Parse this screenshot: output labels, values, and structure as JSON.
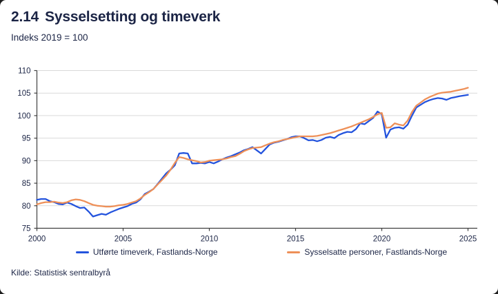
{
  "header": {
    "title_number": "2.14",
    "title_text": "Sysselsetting og timeverk",
    "subtitle": "Indeks 2019 = 100"
  },
  "source": "Kilde: Statistisk sentralbyrå",
  "colors": {
    "navy_text": "#1b2445",
    "blue_line": "#2353dd",
    "orange_line": "#ee9058",
    "gridline": "#d9d9d9",
    "axis": "#3f3f3f",
    "backdrop": "#1d1d1d",
    "card_bg": "#ffffff"
  },
  "chart_data": {
    "type": "line",
    "title": "2.14 Sysselsetting og timeverk",
    "subtitle": "Indeks 2019 = 100",
    "xlabel": "",
    "ylabel": "Indeks 2019 = 100",
    "grid": "horizontal",
    "legend_position": "bottom",
    "xlim": [
      2000,
      2025.5
    ],
    "ylim": [
      75,
      110
    ],
    "x_ticks": [
      2000,
      2005,
      2010,
      2015,
      2020,
      2025
    ],
    "y_ticks": [
      75,
      80,
      85,
      90,
      95,
      100,
      105,
      110
    ],
    "x_start": 2000.0,
    "x_step": 0.25,
    "x_unit": "year (quarterly)",
    "series": [
      {
        "name": "Utførte timeverk, Fastlands-Norge",
        "color": "#2353dd",
        "values": [
          81.3,
          81.5,
          81.5,
          81.0,
          80.8,
          80.4,
          80.3,
          80.7,
          80.4,
          79.9,
          79.5,
          79.6,
          78.7,
          77.6,
          77.9,
          78.2,
          78.0,
          78.5,
          78.9,
          79.3,
          79.6,
          79.9,
          80.4,
          80.7,
          81.4,
          82.6,
          83.1,
          83.7,
          84.8,
          86.0,
          87.2,
          88.0,
          89.0,
          91.6,
          91.7,
          91.6,
          89.4,
          89.4,
          89.5,
          89.4,
          89.7,
          89.4,
          89.8,
          90.3,
          90.7,
          91.0,
          91.4,
          91.8,
          92.3,
          92.6,
          93.0,
          92.3,
          91.6,
          92.6,
          93.6,
          94.0,
          94.2,
          94.5,
          94.8,
          95.2,
          95.4,
          95.4,
          95.0,
          94.5,
          94.6,
          94.3,
          94.6,
          95.1,
          95.3,
          95.0,
          95.7,
          96.1,
          96.4,
          96.3,
          97.0,
          98.3,
          98.1,
          98.8,
          99.5,
          100.9,
          100.3,
          95.1,
          96.9,
          97.3,
          97.4,
          97.1,
          98.0,
          100.0,
          101.8,
          102.4,
          103.0,
          103.4,
          103.7,
          103.9,
          103.8,
          103.5,
          103.9,
          104.1,
          104.3,
          104.45,
          104.6
        ]
      },
      {
        "name": "Sysselsatte personer, Fastlands-Norge",
        "color": "#ee9058",
        "values": [
          80.3,
          80.6,
          80.8,
          80.8,
          80.9,
          80.7,
          80.6,
          80.8,
          81.2,
          81.4,
          81.3,
          81.0,
          80.6,
          80.2,
          80.0,
          79.9,
          79.8,
          79.8,
          79.9,
          80.1,
          80.2,
          80.4,
          80.7,
          81.0,
          81.6,
          82.4,
          83.0,
          83.7,
          84.7,
          85.7,
          86.7,
          88.0,
          89.5,
          90.8,
          90.6,
          90.3,
          90.1,
          89.9,
          89.6,
          89.7,
          90.0,
          90.1,
          90.2,
          90.3,
          90.5,
          90.8,
          91.0,
          91.5,
          92.1,
          92.5,
          92.8,
          92.9,
          93.0,
          93.4,
          93.8,
          94.1,
          94.3,
          94.6,
          94.8,
          95.0,
          95.2,
          95.4,
          95.4,
          95.4,
          95.4,
          95.5,
          95.7,
          95.9,
          96.1,
          96.4,
          96.7,
          97.0,
          97.3,
          97.6,
          98.0,
          98.4,
          98.8,
          99.2,
          99.7,
          100.3,
          100.6,
          97.3,
          97.4,
          98.3,
          98.0,
          97.8,
          98.9,
          100.8,
          102.2,
          102.9,
          103.6,
          104.1,
          104.5,
          104.9,
          105.1,
          105.2,
          105.3,
          105.5,
          105.7,
          105.9,
          106.2
        ]
      }
    ]
  }
}
